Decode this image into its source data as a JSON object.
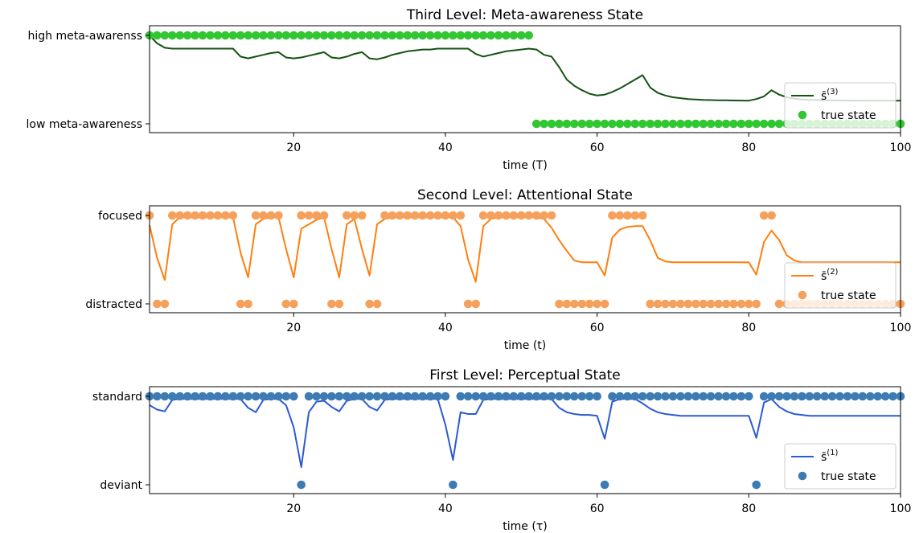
{
  "chart_data": [
    {
      "type": "line",
      "title": "Third Level: Meta-awareness State",
      "xlabel": "time (T)",
      "xlim": [
        1,
        100
      ],
      "x_ticks": [
        20,
        40,
        60,
        80,
        100
      ],
      "ylim": [
        0,
        1
      ],
      "y_tick_labels": [
        "low meta-awareness",
        "high meta-awarenss"
      ],
      "grid": false,
      "legend_position": "lower-right",
      "legend": {
        "line_label": "s̄",
        "line_label_sup": "(3)",
        "points_label": "true state"
      },
      "colors": {
        "line": "#135212",
        "points": "#33c633"
      },
      "true_state_runs": [
        [
          1,
          51,
          1
        ],
        [
          52,
          100,
          0
        ]
      ],
      "belief_x": [
        1,
        2,
        3,
        4,
        5,
        6,
        7,
        8,
        9,
        10,
        11,
        12,
        13,
        14,
        15,
        16,
        17,
        18,
        19,
        20,
        21,
        22,
        23,
        24,
        25,
        26,
        27,
        28,
        29,
        30,
        31,
        32,
        33,
        34,
        35,
        36,
        37,
        38,
        39,
        40,
        41,
        42,
        43,
        44,
        45,
        46,
        47,
        48,
        49,
        50,
        51,
        52,
        53,
        54,
        55,
        56,
        57,
        58,
        59,
        60,
        61,
        62,
        63,
        64,
        65,
        66,
        67,
        68,
        69,
        70,
        71,
        72,
        73,
        74,
        75,
        76,
        77,
        78,
        79,
        80,
        81,
        82,
        83,
        84,
        85,
        86,
        87,
        88,
        89,
        90,
        91,
        92,
        93,
        94,
        95,
        96,
        97,
        98,
        99,
        100
      ],
      "belief_y": [
        1.0,
        0.91,
        0.86,
        0.85,
        0.85,
        0.85,
        0.85,
        0.85,
        0.85,
        0.85,
        0.85,
        0.85,
        0.76,
        0.74,
        0.76,
        0.78,
        0.8,
        0.81,
        0.75,
        0.74,
        0.75,
        0.77,
        0.79,
        0.81,
        0.75,
        0.74,
        0.76,
        0.79,
        0.81,
        0.74,
        0.73,
        0.75,
        0.78,
        0.8,
        0.82,
        0.83,
        0.84,
        0.84,
        0.85,
        0.85,
        0.85,
        0.85,
        0.85,
        0.79,
        0.76,
        0.78,
        0.8,
        0.82,
        0.83,
        0.84,
        0.85,
        0.84,
        0.78,
        0.76,
        0.64,
        0.5,
        0.43,
        0.38,
        0.34,
        0.32,
        0.33,
        0.36,
        0.4,
        0.45,
        0.5,
        0.55,
        0.41,
        0.35,
        0.32,
        0.3,
        0.29,
        0.28,
        0.275,
        0.27,
        0.268,
        0.266,
        0.265,
        0.264,
        0.263,
        0.262,
        0.28,
        0.31,
        0.38,
        0.33,
        0.3,
        0.285,
        0.275,
        0.27,
        0.268,
        0.266,
        0.265,
        0.264,
        0.263,
        0.263,
        0.262,
        0.262,
        0.262,
        0.262,
        0.262,
        0.262
      ]
    },
    {
      "type": "line",
      "title": "Second Level: Attentional State",
      "xlabel": "time (t)",
      "xlim": [
        1,
        100
      ],
      "x_ticks": [
        20,
        40,
        60,
        80,
        100
      ],
      "ylim": [
        0,
        1
      ],
      "y_tick_labels": [
        "distracted",
        "focused"
      ],
      "grid": false,
      "legend_position": "lower-right",
      "legend": {
        "line_label": "s̄",
        "line_label_sup": "(2)",
        "points_label": "true state"
      },
      "colors": {
        "line": "#ff7f0e",
        "points": "#f5a15c"
      },
      "true_state_runs": [
        [
          1,
          1,
          1
        ],
        [
          2,
          3,
          0
        ],
        [
          4,
          12,
          1
        ],
        [
          13,
          14,
          0
        ],
        [
          15,
          18,
          1
        ],
        [
          19,
          20,
          0
        ],
        [
          21,
          24,
          1
        ],
        [
          25,
          26,
          0
        ],
        [
          27,
          29,
          1
        ],
        [
          30,
          31,
          0
        ],
        [
          32,
          42,
          1
        ],
        [
          43,
          44,
          0
        ],
        [
          45,
          54,
          1
        ],
        [
          55,
          61,
          0
        ],
        [
          62,
          66,
          1
        ],
        [
          67,
          81,
          0
        ],
        [
          82,
          83,
          1
        ],
        [
          84,
          100,
          0
        ]
      ],
      "belief_x": [
        1,
        2,
        3,
        4,
        5,
        6,
        7,
        8,
        9,
        10,
        11,
        12,
        13,
        14,
        15,
        16,
        17,
        18,
        19,
        20,
        21,
        22,
        23,
        24,
        25,
        26,
        27,
        28,
        29,
        30,
        31,
        32,
        33,
        34,
        35,
        36,
        37,
        38,
        39,
        40,
        41,
        42,
        43,
        44,
        45,
        46,
        47,
        48,
        49,
        50,
        51,
        52,
        53,
        54,
        55,
        56,
        57,
        58,
        59,
        60,
        61,
        62,
        63,
        64,
        65,
        66,
        67,
        68,
        69,
        70,
        71,
        72,
        73,
        74,
        75,
        76,
        77,
        78,
        79,
        80,
        81,
        82,
        83,
        84,
        85,
        86,
        87,
        88,
        89,
        90,
        91,
        92,
        93,
        94,
        95,
        96,
        97,
        98,
        99,
        100
      ],
      "belief_y": [
        0.89,
        0.52,
        0.27,
        0.9,
        0.98,
        0.98,
        0.98,
        0.98,
        0.98,
        0.98,
        0.98,
        0.98,
        0.58,
        0.3,
        0.9,
        0.96,
        0.98,
        0.98,
        0.62,
        0.3,
        0.85,
        0.9,
        0.95,
        0.98,
        0.62,
        0.3,
        0.9,
        0.96,
        0.62,
        0.32,
        0.9,
        0.96,
        0.98,
        0.98,
        0.98,
        0.98,
        0.98,
        0.98,
        0.98,
        0.98,
        0.98,
        0.88,
        0.5,
        0.25,
        0.88,
        0.96,
        0.98,
        0.98,
        0.98,
        0.98,
        0.98,
        0.98,
        0.96,
        0.86,
        0.72,
        0.6,
        0.49,
        0.47,
        0.47,
        0.47,
        0.32,
        0.75,
        0.84,
        0.87,
        0.88,
        0.88,
        0.72,
        0.52,
        0.48,
        0.47,
        0.47,
        0.47,
        0.47,
        0.47,
        0.47,
        0.47,
        0.47,
        0.47,
        0.47,
        0.47,
        0.33,
        0.7,
        0.83,
        0.72,
        0.55,
        0.49,
        0.47,
        0.47,
        0.47,
        0.47,
        0.47,
        0.47,
        0.47,
        0.47,
        0.47,
        0.47,
        0.47,
        0.47,
        0.47,
        0.47
      ]
    },
    {
      "type": "line",
      "title": "First Level: Perceptual State",
      "xlabel": "time (τ)",
      "xlim": [
        1,
        100
      ],
      "x_ticks": [
        20,
        40,
        60,
        80,
        100
      ],
      "ylim": [
        0,
        1
      ],
      "y_tick_labels": [
        "deviant",
        "standard"
      ],
      "grid": false,
      "legend_position": "lower-right",
      "legend": {
        "line_label": "s̄",
        "line_label_sup": "(1)",
        "points_label": "true state"
      },
      "colors": {
        "line": "#2c5ad2",
        "points": "#3d7bb5"
      },
      "true_state_runs": [
        [
          1,
          20,
          1
        ],
        [
          21,
          21,
          0
        ],
        [
          22,
          40,
          1
        ],
        [
          41,
          41,
          0
        ],
        [
          42,
          60,
          1
        ],
        [
          61,
          61,
          0
        ],
        [
          62,
          80,
          1
        ],
        [
          81,
          81,
          0
        ],
        [
          82,
          100,
          1
        ]
      ],
      "belief_x": [
        1,
        2,
        3,
        4,
        5,
        6,
        7,
        8,
        9,
        10,
        11,
        12,
        13,
        14,
        15,
        16,
        17,
        18,
        19,
        20,
        21,
        22,
        23,
        24,
        25,
        26,
        27,
        28,
        29,
        30,
        31,
        32,
        33,
        34,
        35,
        36,
        37,
        38,
        39,
        40,
        41,
        42,
        43,
        44,
        45,
        46,
        47,
        48,
        49,
        50,
        51,
        52,
        53,
        54,
        55,
        56,
        57,
        58,
        59,
        60,
        61,
        62,
        63,
        64,
        65,
        66,
        67,
        68,
        69,
        70,
        71,
        72,
        73,
        74,
        75,
        76,
        77,
        78,
        79,
        80,
        81,
        82,
        83,
        84,
        85,
        86,
        87,
        88,
        89,
        90,
        91,
        92,
        93,
        94,
        95,
        96,
        97,
        98,
        99,
        100
      ],
      "belief_y": [
        0.9,
        0.85,
        0.83,
        0.96,
        0.97,
        0.97,
        0.97,
        0.97,
        0.97,
        0.97,
        0.97,
        0.97,
        0.97,
        0.87,
        0.82,
        0.96,
        0.97,
        0.97,
        0.9,
        0.65,
        0.2,
        0.82,
        0.94,
        0.95,
        0.88,
        0.83,
        0.95,
        0.97,
        0.97,
        0.88,
        0.84,
        0.96,
        0.97,
        0.97,
        0.97,
        0.97,
        0.97,
        0.97,
        0.97,
        0.68,
        0.28,
        0.82,
        0.8,
        0.8,
        0.96,
        0.97,
        0.97,
        0.97,
        0.97,
        0.97,
        0.97,
        0.97,
        0.97,
        0.97,
        0.87,
        0.82,
        0.8,
        0.79,
        0.79,
        0.78,
        0.52,
        0.94,
        0.97,
        0.97,
        0.97,
        0.92,
        0.86,
        0.82,
        0.8,
        0.79,
        0.78,
        0.78,
        0.78,
        0.78,
        0.78,
        0.78,
        0.78,
        0.78,
        0.78,
        0.78,
        0.53,
        0.93,
        0.97,
        0.88,
        0.83,
        0.8,
        0.79,
        0.78,
        0.78,
        0.78,
        0.78,
        0.78,
        0.78,
        0.78,
        0.78,
        0.78,
        0.78,
        0.78,
        0.78,
        0.78
      ]
    }
  ]
}
